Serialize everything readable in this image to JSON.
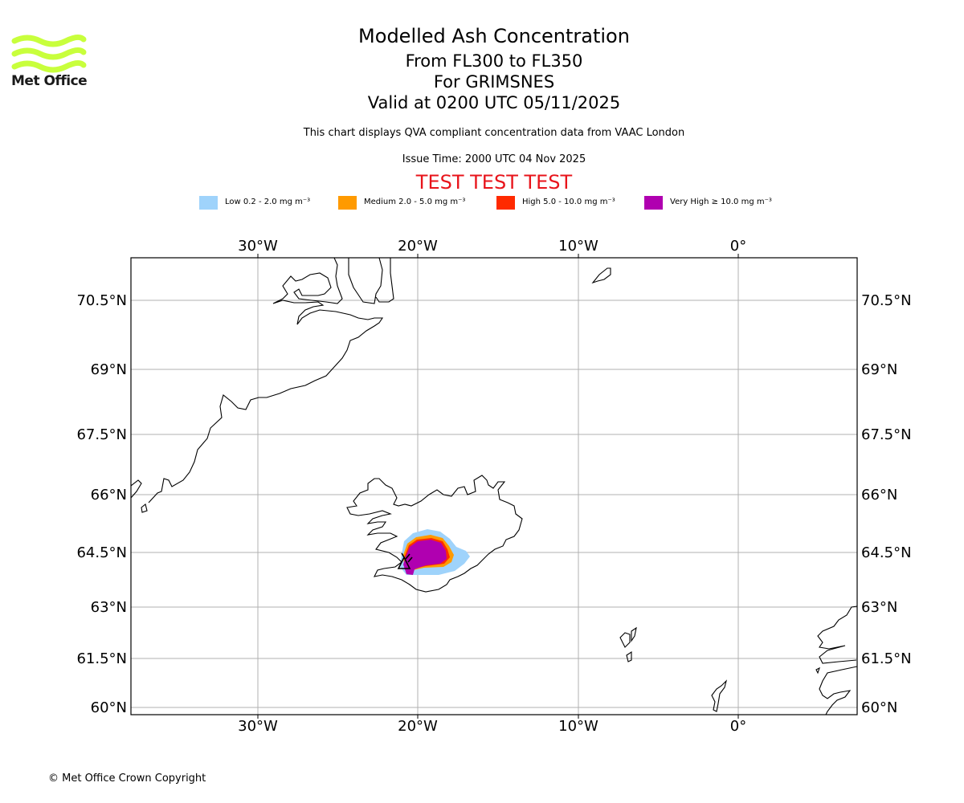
{
  "title": "Modelled Ash Concentration",
  "subtitle_levels": "From FL300 to FL350",
  "subtitle_volcano": "For GRIMSNES",
  "subtitle_valid": "Valid at 0200 UTC 05/11/2025",
  "description": "This chart displays QVA compliant concentration data from VAAC London",
  "issue_time": "Issue Time: 2000 UTC 04 Nov 2025",
  "test_banner": "TEST TEST TEST",
  "logo_text": "Met Office",
  "copyright": "© Met Office Crown Copyright",
  "colors": {
    "test_banner": "#e8141b",
    "logo_green": "#c8ff3c",
    "low": "#9fd3fb",
    "medium": "#ff9a00",
    "high": "#ff2a00",
    "very_high": "#b000b0",
    "grid": "#b0b0b0"
  },
  "legend": [
    {
      "label": "Low 0.2 - 2.0 mg m⁻³",
      "color": "#9fd3fb"
    },
    {
      "label": "Medium 2.0 - 5.0 mg m⁻³",
      "color": "#ff9a00"
    },
    {
      "label": "High 5.0 - 10.0 mg m⁻³",
      "color": "#ff2a00"
    },
    {
      "label": "Very High ≥ 10.0 mg m⁻³",
      "color": "#b000b0"
    }
  ],
  "map": {
    "lon_labels": [
      "30°W",
      "20°W",
      "10°W",
      "0°"
    ],
    "lat_labels": [
      "70.5°N",
      "69°N",
      "67.5°N",
      "66°N",
      "64.5°N",
      "63°N",
      "61.5°N",
      "60°N"
    ],
    "volcano_marker": "volcano-triangle"
  }
}
